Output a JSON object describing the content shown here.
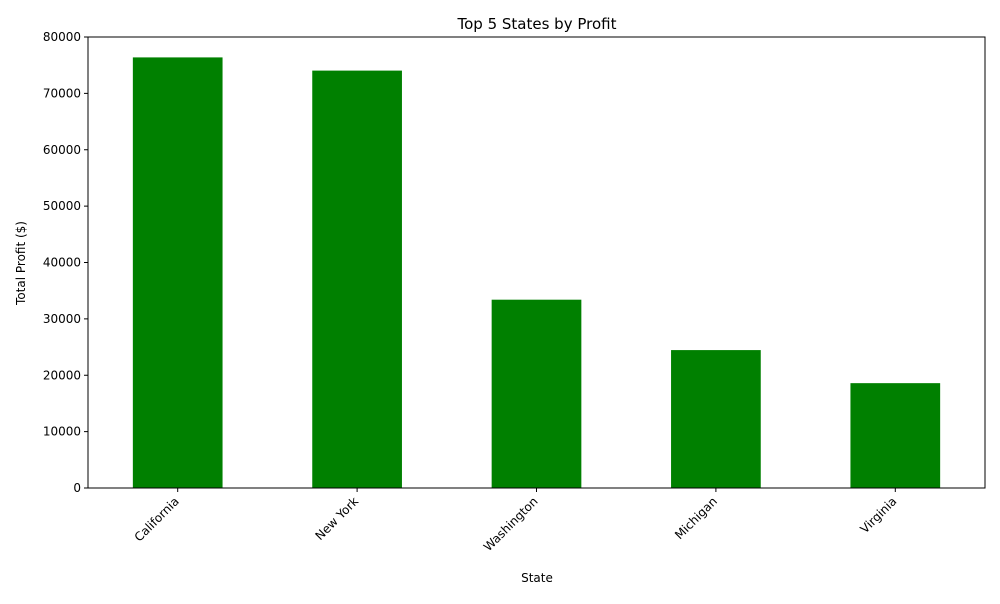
{
  "chart_data": {
    "type": "bar",
    "title": "Top 5 States by Profit",
    "xlabel": "State",
    "ylabel": "Total Profit ($)",
    "categories": [
      "California",
      "New York",
      "Washington",
      "Michigan",
      "Virginia"
    ],
    "values": [
      76381,
      74039,
      33403,
      24463,
      18598
    ],
    "ylim": [
      0,
      80000
    ],
    "yticks": [
      0,
      10000,
      20000,
      30000,
      40000,
      50000,
      60000,
      70000,
      80000
    ],
    "ytick_labels": [
      "0",
      "10000",
      "20000",
      "30000",
      "40000",
      "50000",
      "60000",
      "70000",
      "80000"
    ],
    "bar_color": "#008000",
    "grid": false,
    "legend": "none"
  }
}
